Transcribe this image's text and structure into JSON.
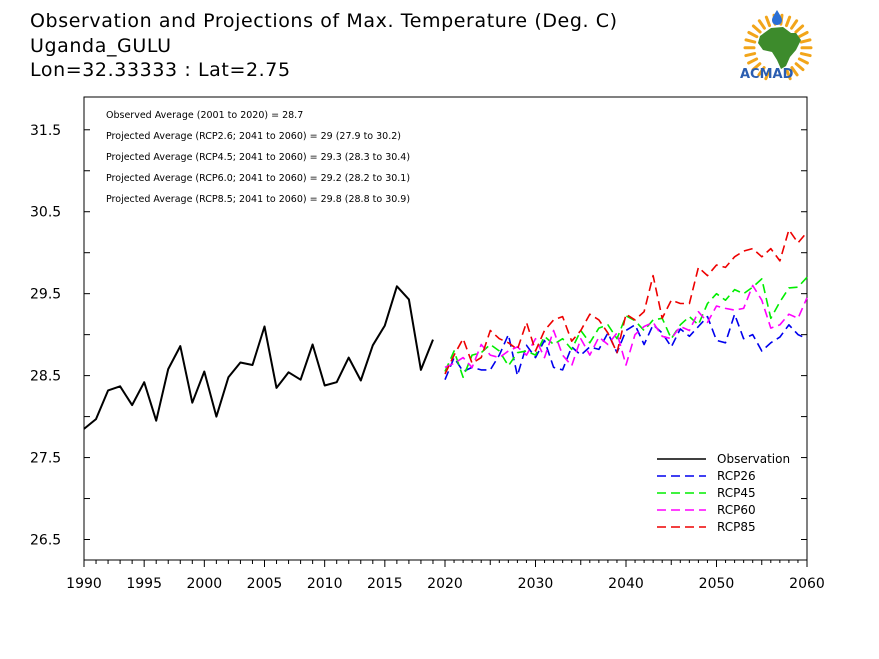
{
  "header": {
    "title_line1": "Observation and Projections of Max. Temperature (Deg. C)",
    "title_line2": "Uganda_GULU",
    "title_line3": "Lon=32.33333 : Lat=2.75"
  },
  "logo": {
    "text": "ACMAD",
    "colors": {
      "africa": "#3d8b2c",
      "sun": "#f2a51a",
      "drop": "#2a6fd6",
      "text": "#2a5db0"
    }
  },
  "annotations": [
    "Observed Average (2001 to 2020) = 28.7",
    "Projected Average (RCP2.6; 2041 to 2060) = 29 (27.9 to 30.2)",
    "Projected Average (RCP4.5; 2041 to 2060) = 29.3 (28.3 to 30.4)",
    "Projected Average (RCP6.0; 2041 to 2060) = 29.2 (28.2 to 30.1)",
    "Projected Average (RCP8.5; 2041 to 2060) = 29.8 (28.8 to 30.9)"
  ],
  "chart_data": {
    "type": "line",
    "title": "Observation and Projections of Max. Temperature (Deg. C)",
    "xlim": [
      1990,
      2060
    ],
    "ylim": [
      26.25,
      31.9
    ],
    "x_ticks_left": [
      "1990",
      "1995",
      "2000",
      "2005",
      "2010",
      "2015",
      "2020"
    ],
    "x_ticks_right": [
      "2020",
      "2030",
      "2040",
      "2050",
      "2060"
    ],
    "y_ticks": [
      "26.5",
      "27.5",
      "28.5",
      "29.5",
      "30.5",
      "31.5"
    ],
    "legend_position": "bottom-right",
    "series": [
      {
        "name": "Observation",
        "color": "#000000",
        "dash": "solid",
        "x_start": 1990,
        "values": [
          27.85,
          27.97,
          28.32,
          28.37,
          28.14,
          28.42,
          27.95,
          28.58,
          28.86,
          28.17,
          28.55,
          28.0,
          28.48,
          28.66,
          28.63,
          29.1,
          28.35,
          28.54,
          28.45,
          28.88,
          28.38,
          28.42,
          28.72,
          28.44,
          28.87,
          29.11,
          29.59,
          29.43,
          28.57,
          28.94
        ]
      },
      {
        "name": "RCP26",
        "color": "#0000ee",
        "dash": "dashed",
        "x_start": 2020,
        "values": [
          28.45,
          28.72,
          28.55,
          28.6,
          28.57,
          28.57,
          28.75,
          29.0,
          28.5,
          28.87,
          28.72,
          28.93,
          28.6,
          28.57,
          28.85,
          28.75,
          28.85,
          28.82,
          29.02,
          28.78,
          29.05,
          29.12,
          28.88,
          29.12,
          29.02,
          28.85,
          29.07,
          28.98,
          29.1,
          29.22,
          28.93,
          28.9,
          29.25,
          28.95,
          29.0,
          28.8,
          28.9,
          28.97,
          29.12,
          29.0,
          28.95
        ]
      },
      {
        "name": "RCP45",
        "color": "#00ee00",
        "dash": "dashed",
        "x_start": 2020,
        "values": [
          28.55,
          28.8,
          28.48,
          28.75,
          28.78,
          28.88,
          28.8,
          28.62,
          28.78,
          28.8,
          28.75,
          28.98,
          28.88,
          28.95,
          28.82,
          29.05,
          28.9,
          29.08,
          29.12,
          28.95,
          29.23,
          29.17,
          29.05,
          29.18,
          29.2,
          28.95,
          29.12,
          29.22,
          29.12,
          29.38,
          29.5,
          29.42,
          29.55,
          29.5,
          29.58,
          29.68,
          29.2,
          29.4,
          29.57,
          29.58,
          29.7
        ]
      },
      {
        "name": "RCP60",
        "color": "#ff00ff",
        "dash": "dashed",
        "x_start": 2020,
        "values": [
          28.6,
          28.65,
          28.72,
          28.6,
          28.88,
          28.75,
          28.72,
          28.8,
          28.85,
          28.75,
          28.95,
          28.72,
          29.05,
          28.75,
          28.62,
          28.95,
          28.75,
          28.97,
          28.88,
          29.02,
          28.63,
          29.0,
          29.1,
          29.15,
          28.98,
          28.95,
          29.1,
          29.05,
          29.28,
          29.15,
          29.35,
          29.32,
          29.3,
          29.32,
          29.6,
          29.42,
          29.08,
          29.12,
          29.25,
          29.2,
          29.45
        ]
      },
      {
        "name": "RCP85",
        "color": "#ee0000",
        "dash": "dashed",
        "x_start": 2020,
        "values": [
          28.52,
          28.75,
          28.95,
          28.65,
          28.72,
          29.05,
          28.95,
          28.9,
          28.82,
          29.15,
          28.8,
          29.05,
          29.18,
          29.22,
          28.92,
          29.05,
          29.25,
          29.18,
          29.02,
          28.78,
          29.25,
          29.18,
          29.28,
          29.72,
          29.2,
          29.42,
          29.38,
          29.38,
          29.82,
          29.72,
          29.85,
          29.82,
          29.95,
          30.02,
          30.05,
          29.95,
          30.05,
          29.9,
          30.28,
          30.12,
          30.25
        ]
      }
    ]
  }
}
